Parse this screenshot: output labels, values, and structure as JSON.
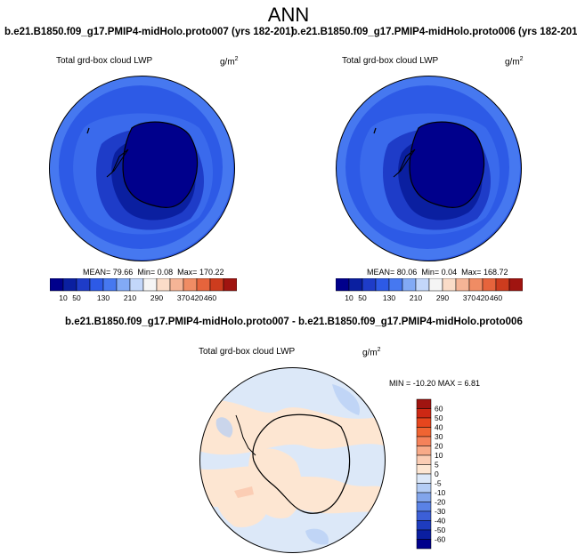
{
  "figure": {
    "title": "ANN"
  },
  "panels": [
    {
      "case_label": "b.e21.B1850.f09_g17.PMIP4-midHolo.proto007 (yrs 182-201)",
      "variable": "Total grd-box cloud LWP",
      "units": "g/m",
      "units_exp": "2",
      "stats": {
        "mean_label": "MEAN=",
        "mean": "79.66",
        "min_label": "Min=",
        "min": "0.08",
        "max_label": "Max=",
        "max": "170.22"
      }
    },
    {
      "case_label": "b.e21.B1850.f09_g17.PMIP4-midHolo.proto006 (yrs 182-201)",
      "variable": "Total grd-box cloud LWP",
      "units": "g/m",
      "units_exp": "2",
      "stats": {
        "mean_label": "MEAN=",
        "mean": "80.06",
        "min_label": "Min=",
        "min": "0.04",
        "max_label": "Max=",
        "max": "168.72"
      }
    },
    {
      "case_label": "b.e21.B1850.f09_g17.PMIP4-midHolo.proto007 - b.e21.B1850.f09_g17.PMIP4-midHolo.proto006",
      "variable": "Total grd-box cloud LWP",
      "units": "g/m",
      "units_exp": "2",
      "stats_text": "MIN = -10.20 MAX =  6.81"
    }
  ],
  "chart_data": [
    {
      "type": "heatmap",
      "projection": "south-polar-stereographic",
      "title": "Total grd-box cloud LWP",
      "colorbar": {
        "orientation": "horizontal",
        "levels": [
          10,
          50,
          90,
          130,
          170,
          210,
          250,
          290,
          330,
          370,
          420,
          460
        ],
        "tick_labels": [
          "10",
          "50",
          "130",
          "210",
          "290",
          "370",
          "420",
          "460"
        ],
        "colors": [
          "#00008c",
          "#0a1fa0",
          "#1e3cc8",
          "#2d5ae6",
          "#4678f0",
          "#82aaf5",
          "#c3d7fa",
          "#f5f5f5",
          "#fadcc8",
          "#f5b496",
          "#f08c64",
          "#e6643c",
          "#cd3c1e",
          "#a01410"
        ]
      },
      "field_description": "LWP ~90-130 over Southern Ocean; low (<10-50) over Antarctic interior"
    },
    {
      "type": "heatmap",
      "projection": "south-polar-stereographic",
      "title": "Total grd-box cloud LWP",
      "colorbar": {
        "orientation": "horizontal",
        "levels": [
          10,
          50,
          90,
          130,
          170,
          210,
          250,
          290,
          330,
          370,
          420,
          460
        ],
        "tick_labels": [
          "10",
          "50",
          "130",
          "210",
          "290",
          "370",
          "420",
          "460"
        ],
        "colors": [
          "#00008c",
          "#0a1fa0",
          "#1e3cc8",
          "#2d5ae6",
          "#4678f0",
          "#82aaf5",
          "#c3d7fa",
          "#f5f5f5",
          "#fadcc8",
          "#f5b496",
          "#f08c64",
          "#e6643c",
          "#cd3c1e",
          "#a01410"
        ]
      }
    },
    {
      "type": "heatmap",
      "projection": "south-polar-stereographic",
      "title": "Total grd-box cloud LWP",
      "colorbar": {
        "orientation": "vertical",
        "tick_labels": [
          "60",
          "50",
          "40",
          "30",
          "20",
          "10",
          "5",
          "0",
          "-5",
          "-10",
          "-20",
          "-30",
          "-40",
          "-50",
          "-60"
        ],
        "colors": [
          "#a01410",
          "#cd2814",
          "#e6461e",
          "#f06432",
          "#f5825a",
          "#f8aa88",
          "#fbcdb4",
          "#fde6d2",
          "#dce8f8",
          "#b4cdf5",
          "#82a5eb",
          "#5a82e6",
          "#3c5fd7",
          "#1e3cbe",
          "#0a1ea0",
          "#00008c"
        ]
      },
      "dominant_difference": "small, between -5 and 5"
    }
  ]
}
